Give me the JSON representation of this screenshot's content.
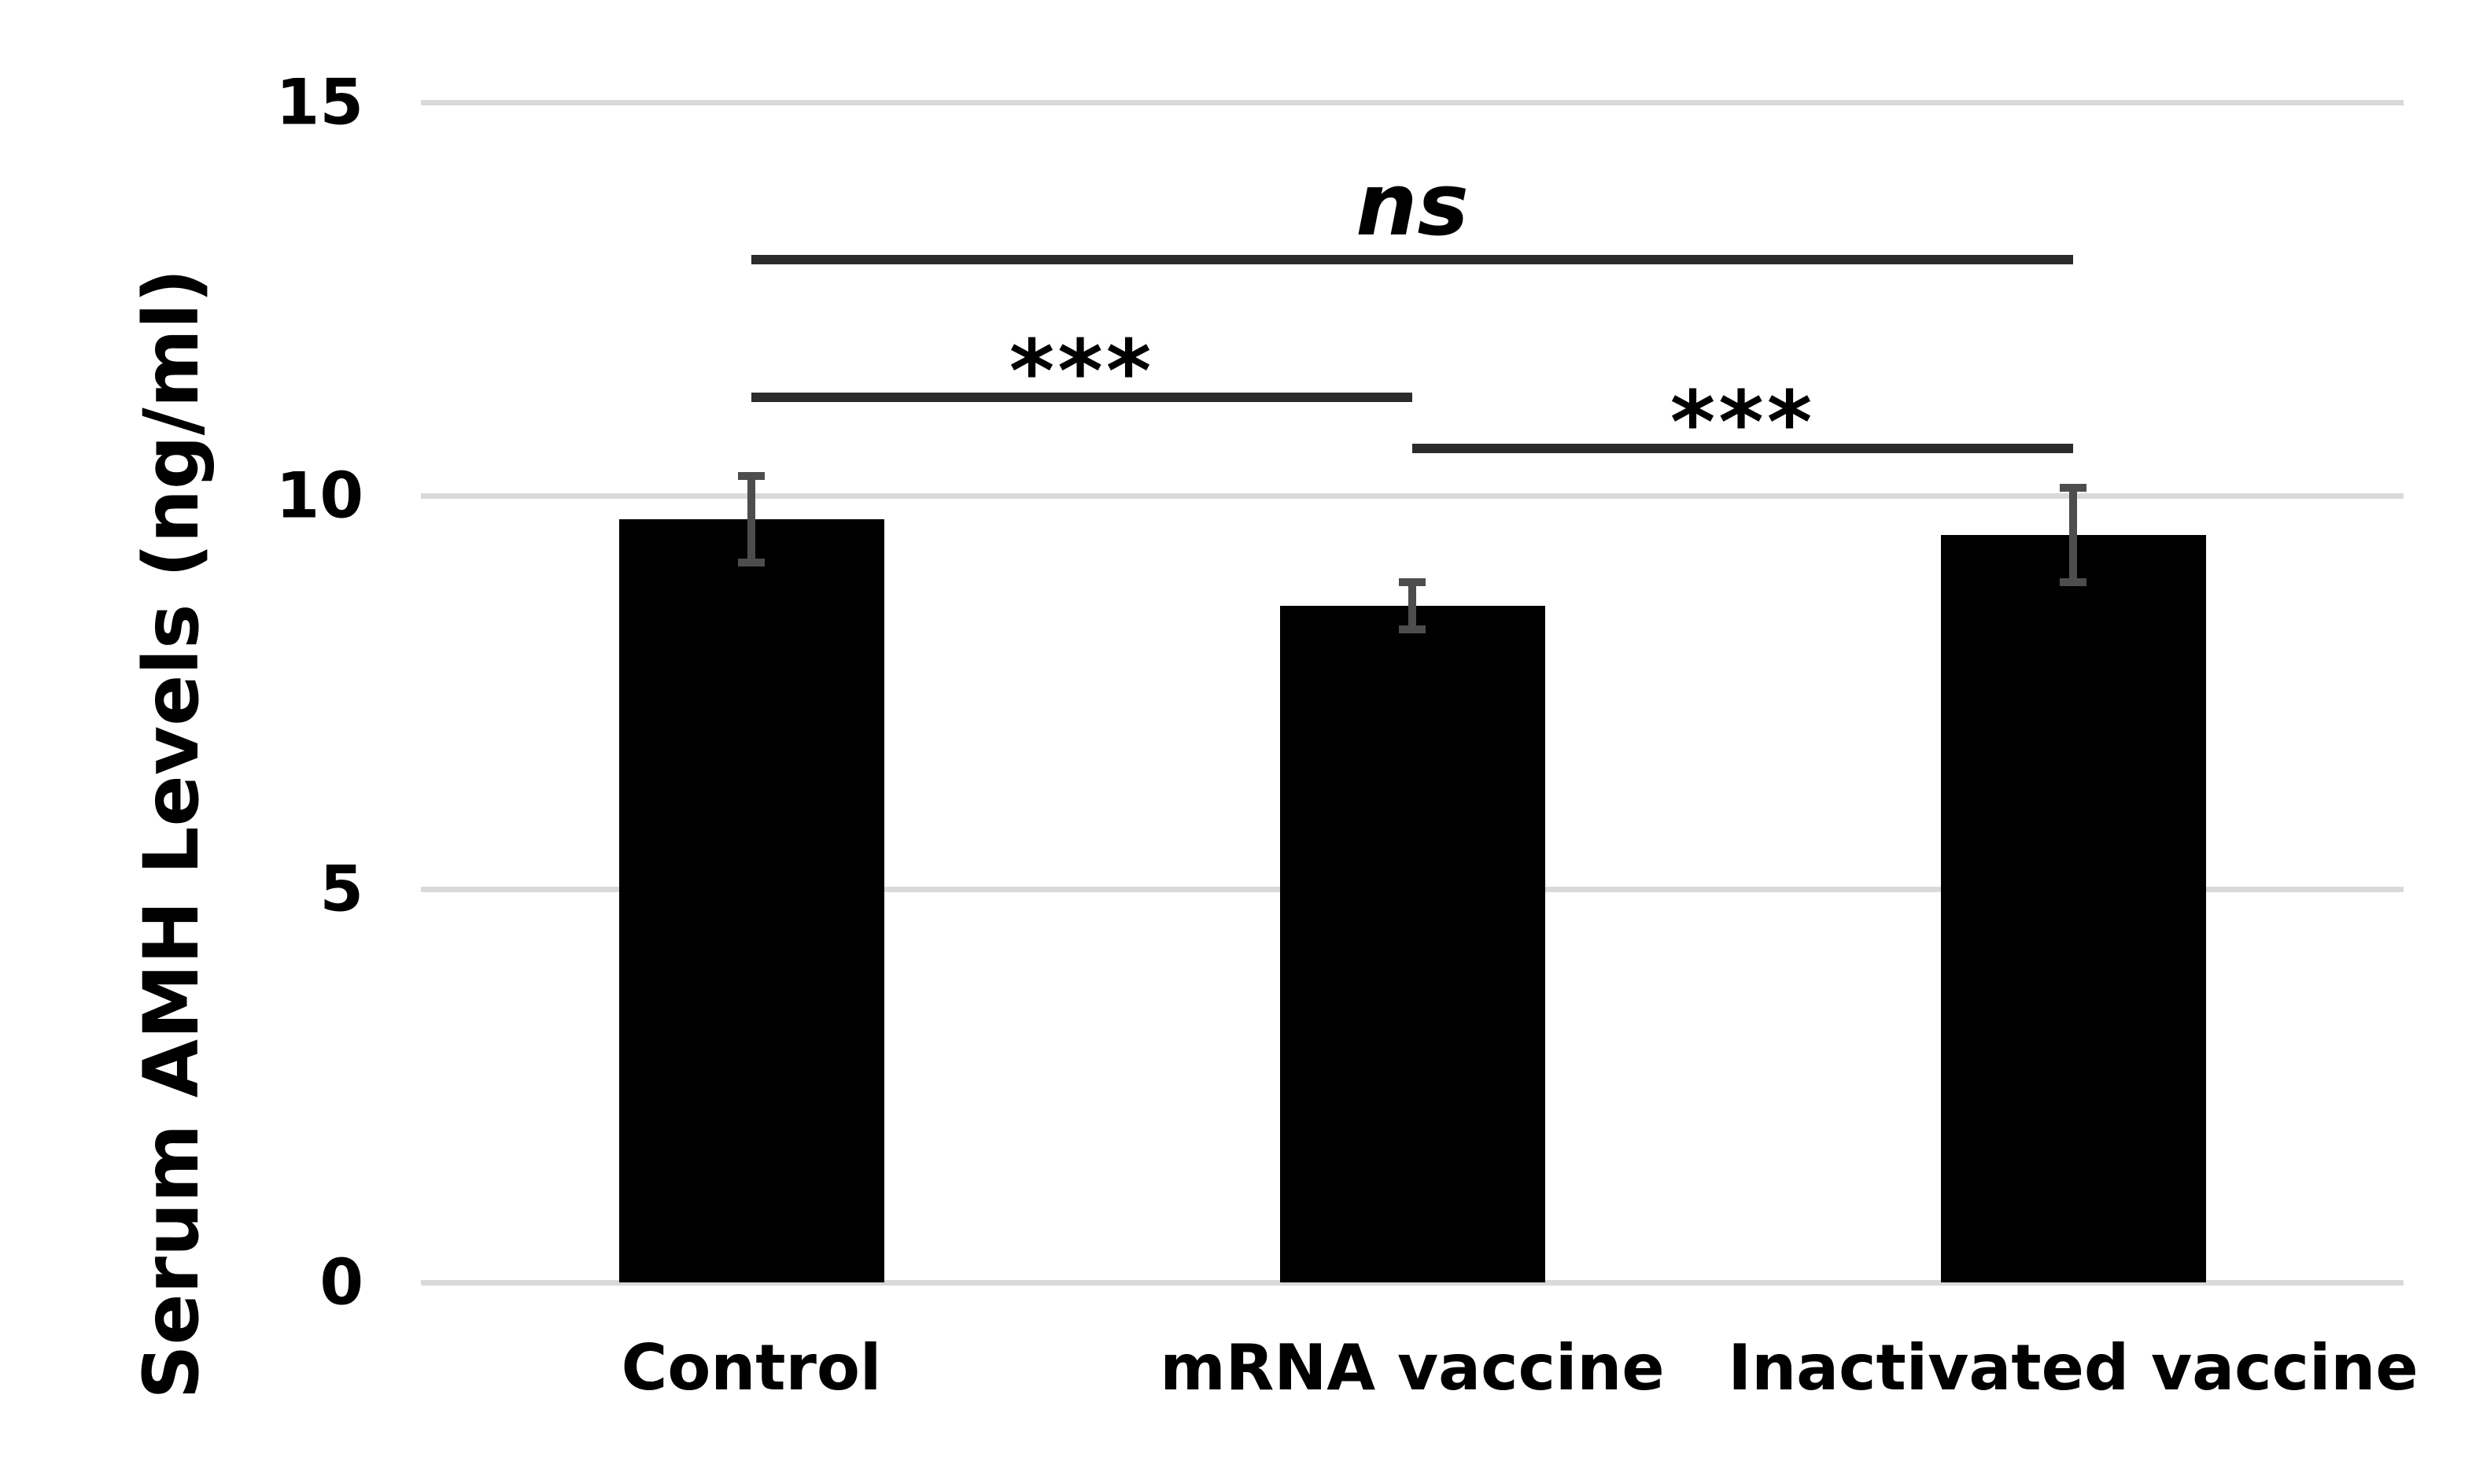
{
  "figure": {
    "background": "#ffffff",
    "text_color": "#000000"
  },
  "chart_data": {
    "type": "bar",
    "title": "",
    "xlabel": "",
    "ylabel": "Serum AMH Levels (ng/ml)",
    "categories": [
      "Control",
      "mRNA vaccine",
      "Inactivated vaccine"
    ],
    "series": [
      {
        "name": "Serum AMH Levels",
        "values": [
          9.7,
          8.6,
          9.5
        ],
        "errors": [
          0.55,
          0.3,
          0.6
        ]
      }
    ],
    "ylim": [
      0,
      15
    ],
    "yticks": [
      0,
      5,
      10,
      15
    ],
    "grid": "horizontal-only",
    "legend": "none",
    "bar_color": "#000000",
    "error_bar_color": "#4d4d4d",
    "gridline_color": "#d9d9d9",
    "bracket_color": "#2b2b2b",
    "annotations": [
      {
        "label": "ns",
        "style": "italic",
        "from": 0,
        "to": 2,
        "line_y": 13.0,
        "text_y": 13.67
      },
      {
        "label": "***",
        "style": "stars",
        "from": 0,
        "to": 1,
        "line_y": 11.25,
        "text_y": 11.8
      },
      {
        "label": "***",
        "style": "stars",
        "from": 1,
        "to": 2,
        "line_y": 10.6,
        "text_y": 11.15
      }
    ]
  }
}
